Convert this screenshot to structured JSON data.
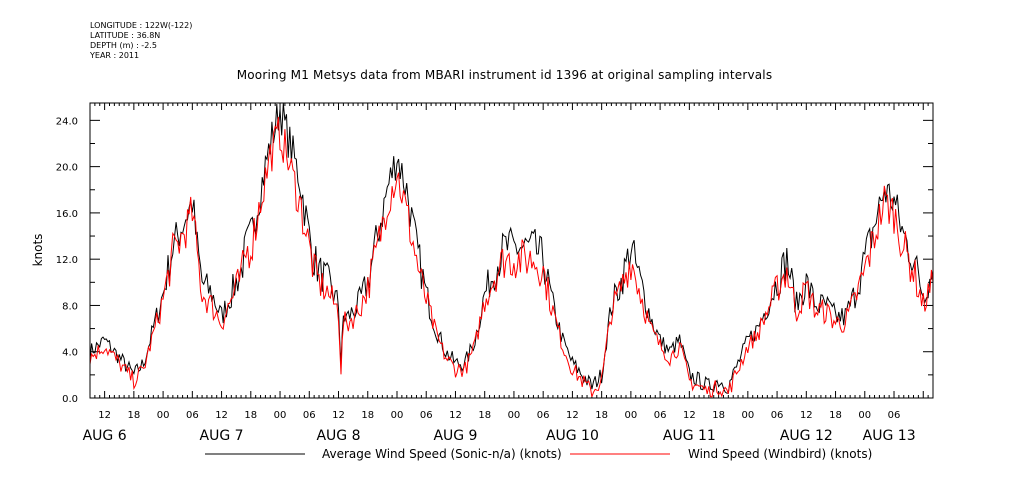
{
  "meta": {
    "longitude": "LONGITUDE : 122W(-122)",
    "latitude": "LATITUDE : 36.8N",
    "depth": "DEPTH (m) : -2.5",
    "year": "YEAR : 2011"
  },
  "chart_data": {
    "type": "line",
    "title": "Mooring M1 Metsys data from MBARI instrument id 1396 at original sampling intervals",
    "ylabel": "knots",
    "xlabel": "",
    "ylim": [
      0,
      25.5
    ],
    "xlim_hours": [
      -15,
      158
    ],
    "yticks": [
      "0.0",
      "4.0",
      "8.0",
      "12.0",
      "16.0",
      "20.0",
      "24.0"
    ],
    "xticks": [
      {
        "h": -12,
        "label": "12"
      },
      {
        "h": -6,
        "label": "18"
      },
      {
        "h": 0,
        "label": "00"
      },
      {
        "h": 6,
        "label": "06"
      },
      {
        "h": 12,
        "label": "12"
      },
      {
        "h": 18,
        "label": "18"
      },
      {
        "h": 24,
        "label": "00"
      },
      {
        "h": 30,
        "label": "06"
      },
      {
        "h": 36,
        "label": "12"
      },
      {
        "h": 42,
        "label": "18"
      },
      {
        "h": 48,
        "label": "00"
      },
      {
        "h": 54,
        "label": "06"
      },
      {
        "h": 60,
        "label": "12"
      },
      {
        "h": 66,
        "label": "18"
      },
      {
        "h": 72,
        "label": "00"
      },
      {
        "h": 78,
        "label": "06"
      },
      {
        "h": 84,
        "label": "12"
      },
      {
        "h": 90,
        "label": "18"
      },
      {
        "h": 96,
        "label": "00"
      },
      {
        "h": 102,
        "label": "06"
      },
      {
        "h": 108,
        "label": "12"
      },
      {
        "h": 114,
        "label": "18"
      },
      {
        "h": 120,
        "label": "00"
      },
      {
        "h": 126,
        "label": "06"
      },
      {
        "h": 132,
        "label": "12"
      },
      {
        "h": 138,
        "label": "18"
      },
      {
        "h": 144,
        "label": "00"
      },
      {
        "h": 150,
        "label": "06"
      }
    ],
    "day_labels": [
      {
        "h": -12,
        "label": "AUG  6"
      },
      {
        "h": 12,
        "label": "AUG  7"
      },
      {
        "h": 36,
        "label": "AUG  8"
      },
      {
        "h": 60,
        "label": "AUG  9"
      },
      {
        "h": 84,
        "label": "AUG 10"
      },
      {
        "h": 108,
        "label": "AUG 11"
      },
      {
        "h": 132,
        "label": "AUG 12"
      },
      {
        "h": 149,
        "label": "AUG 13"
      }
    ],
    "series": [
      {
        "name": "Average Wind Speed (Sonic-n/a) (knots)",
        "color": "#000000",
        "x": [
          -15,
          -12,
          -10,
          -8,
          -6,
          -5,
          -4,
          -2,
          0,
          2,
          4,
          6,
          7,
          8,
          10,
          12,
          14,
          16,
          17,
          18,
          20,
          22,
          24,
          26,
          28,
          30,
          31,
          32,
          34,
          36,
          36.5,
          37,
          38,
          40,
          42,
          44,
          46,
          48,
          50,
          52,
          53,
          54,
          56,
          58,
          60,
          62,
          64,
          66,
          68,
          70,
          72,
          74,
          76,
          78,
          80,
          82,
          84,
          86,
          88,
          90,
          92,
          94,
          96,
          98,
          100,
          102,
          104,
          106,
          108,
          110,
          112,
          114,
          116,
          118,
          120,
          122,
          124,
          126,
          128,
          130,
          132,
          134,
          136,
          138,
          140,
          142,
          144,
          146,
          148,
          150,
          152,
          154,
          156,
          158
        ],
        "y": [
          4,
          5,
          4,
          3,
          2,
          2.5,
          3,
          6,
          9,
          13,
          15,
          17,
          13,
          10,
          9,
          7,
          9,
          11,
          13,
          14,
          18,
          22,
          25,
          22,
          19,
          14,
          12,
          11,
          10,
          8,
          3,
          7,
          7,
          8,
          10,
          14,
          18,
          21,
          18,
          13,
          11,
          9,
          6,
          4,
          3,
          3,
          5,
          9,
          11,
          13,
          13,
          13,
          13,
          12,
          8,
          5,
          3,
          2,
          1,
          2,
          8,
          10,
          13,
          10,
          7,
          5,
          4,
          5,
          2,
          1.5,
          1,
          1.5,
          1,
          3,
          5,
          6,
          8,
          10,
          12,
          8,
          10,
          8,
          8,
          7,
          7,
          9,
          12,
          15,
          18,
          17,
          14,
          12,
          9,
          11
        ]
      },
      {
        "name": "Wind Speed (Windbird) (knots)",
        "color": "#ff0000",
        "x": [
          -15,
          -12,
          -10,
          -8,
          -6,
          -5,
          -4,
          -2,
          0,
          2,
          4,
          6,
          7,
          8,
          10,
          12,
          14,
          16,
          17,
          18,
          20,
          22,
          24,
          26,
          28,
          30,
          31,
          32,
          34,
          36,
          36.5,
          37,
          38,
          40,
          42,
          44,
          46,
          48,
          50,
          52,
          53,
          54,
          56,
          58,
          60,
          62,
          64,
          66,
          68,
          70,
          72,
          74,
          76,
          78,
          80,
          82,
          84,
          86,
          88,
          90,
          92,
          94,
          96,
          98,
          100,
          102,
          104,
          106,
          108,
          110,
          112,
          114,
          116,
          118,
          120,
          122,
          124,
          126,
          128,
          130,
          132,
          134,
          136,
          138,
          140,
          142,
          144,
          146,
          148,
          150,
          152,
          154,
          156,
          158
        ],
        "y": [
          3.5,
          4.5,
          3.5,
          2.5,
          1.5,
          2,
          2.5,
          5.5,
          8.5,
          12.5,
          14,
          16,
          12.5,
          9,
          8,
          6.5,
          8.5,
          10.5,
          12.5,
          13,
          17,
          21,
          23,
          20,
          17,
          13,
          11,
          10,
          9,
          7.5,
          2.5,
          6.5,
          6.5,
          7.5,
          9.5,
          13,
          17,
          19.5,
          16,
          12,
          10,
          8.5,
          5.5,
          3.5,
          2.5,
          2.5,
          4.5,
          8.5,
          10.5,
          12,
          12,
          12,
          12,
          11,
          7.5,
          4.5,
          2.5,
          1.5,
          0.5,
          1.5,
          7.5,
          9.5,
          12,
          9,
          6,
          4.5,
          3.5,
          4.5,
          1.5,
          1,
          0.5,
          1,
          0.5,
          2.5,
          4.5,
          5.5,
          7.5,
          9.5,
          11,
          7.5,
          9.5,
          7.5,
          7.5,
          6.5,
          6.5,
          8.5,
          11,
          14,
          17,
          16,
          13,
          11,
          8,
          10
        ]
      }
    ]
  }
}
